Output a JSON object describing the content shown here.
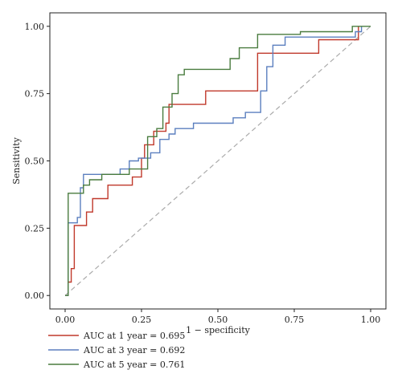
{
  "chart_data": {
    "type": "line",
    "title": "",
    "xlabel": "1 − specificity",
    "ylabel": "Sensitivity",
    "xlim": [
      -0.05,
      1.05
    ],
    "ylim": [
      -0.05,
      1.05
    ],
    "x_ticks": [
      "0.00",
      "0.25",
      "0.50",
      "0.75",
      "1.00"
    ],
    "y_ticks": [
      "0.00",
      "0.25",
      "0.50",
      "0.75",
      "1.00"
    ],
    "grid": false,
    "legend_position": "bottom-left, below plot",
    "reference_line": {
      "style": "dashed",
      "color": "#aaaaaa",
      "from": [
        0,
        0
      ],
      "to": [
        1,
        1
      ]
    },
    "series": [
      {
        "name": "AUC at 1 year = 0.695",
        "color": "#c0392b",
        "points": [
          [
            0.0,
            0.0
          ],
          [
            0.01,
            0.0
          ],
          [
            0.01,
            0.05
          ],
          [
            0.02,
            0.05
          ],
          [
            0.02,
            0.1
          ],
          [
            0.03,
            0.1
          ],
          [
            0.03,
            0.26
          ],
          [
            0.07,
            0.26
          ],
          [
            0.07,
            0.31
          ],
          [
            0.09,
            0.31
          ],
          [
            0.09,
            0.36
          ],
          [
            0.14,
            0.36
          ],
          [
            0.14,
            0.41
          ],
          [
            0.22,
            0.41
          ],
          [
            0.22,
            0.44
          ],
          [
            0.25,
            0.44
          ],
          [
            0.25,
            0.51
          ],
          [
            0.26,
            0.51
          ],
          [
            0.26,
            0.56
          ],
          [
            0.29,
            0.56
          ],
          [
            0.29,
            0.61
          ],
          [
            0.33,
            0.61
          ],
          [
            0.33,
            0.64
          ],
          [
            0.34,
            0.64
          ],
          [
            0.34,
            0.71
          ],
          [
            0.46,
            0.71
          ],
          [
            0.46,
            0.76
          ],
          [
            0.63,
            0.76
          ],
          [
            0.63,
            0.9
          ],
          [
            0.83,
            0.9
          ],
          [
            0.83,
            0.95
          ],
          [
            0.96,
            0.95
          ],
          [
            0.96,
            1.0
          ]
        ]
      },
      {
        "name": "AUC at 3 year = 0.692",
        "color": "#5b7fbf",
        "points": [
          [
            0.0,
            0.0
          ],
          [
            0.01,
            0.0
          ],
          [
            0.01,
            0.27
          ],
          [
            0.04,
            0.27
          ],
          [
            0.04,
            0.29
          ],
          [
            0.05,
            0.29
          ],
          [
            0.05,
            0.4
          ],
          [
            0.06,
            0.4
          ],
          [
            0.06,
            0.45
          ],
          [
            0.18,
            0.45
          ],
          [
            0.18,
            0.47
          ],
          [
            0.21,
            0.47
          ],
          [
            0.21,
            0.5
          ],
          [
            0.24,
            0.5
          ],
          [
            0.24,
            0.51
          ],
          [
            0.28,
            0.51
          ],
          [
            0.28,
            0.53
          ],
          [
            0.31,
            0.53
          ],
          [
            0.31,
            0.58
          ],
          [
            0.34,
            0.58
          ],
          [
            0.34,
            0.6
          ],
          [
            0.36,
            0.6
          ],
          [
            0.36,
            0.62
          ],
          [
            0.42,
            0.62
          ],
          [
            0.42,
            0.64
          ],
          [
            0.55,
            0.64
          ],
          [
            0.55,
            0.66
          ],
          [
            0.59,
            0.66
          ],
          [
            0.59,
            0.68
          ],
          [
            0.64,
            0.68
          ],
          [
            0.64,
            0.76
          ],
          [
            0.66,
            0.76
          ],
          [
            0.66,
            0.85
          ],
          [
            0.68,
            0.85
          ],
          [
            0.68,
            0.93
          ],
          [
            0.72,
            0.93
          ],
          [
            0.72,
            0.96
          ],
          [
            0.95,
            0.96
          ],
          [
            0.95,
            0.98
          ],
          [
            0.97,
            0.98
          ],
          [
            0.97,
            1.0
          ]
        ]
      },
      {
        "name": "AUC at 5 year = 0.761",
        "color": "#4a7c3f",
        "points": [
          [
            0.0,
            0.0
          ],
          [
            0.01,
            0.0
          ],
          [
            0.01,
            0.38
          ],
          [
            0.06,
            0.38
          ],
          [
            0.06,
            0.41
          ],
          [
            0.08,
            0.41
          ],
          [
            0.08,
            0.43
          ],
          [
            0.12,
            0.43
          ],
          [
            0.12,
            0.45
          ],
          [
            0.21,
            0.45
          ],
          [
            0.21,
            0.47
          ],
          [
            0.27,
            0.47
          ],
          [
            0.27,
            0.59
          ],
          [
            0.3,
            0.59
          ],
          [
            0.3,
            0.62
          ],
          [
            0.32,
            0.62
          ],
          [
            0.32,
            0.7
          ],
          [
            0.35,
            0.7
          ],
          [
            0.35,
            0.75
          ],
          [
            0.37,
            0.75
          ],
          [
            0.37,
            0.82
          ],
          [
            0.39,
            0.82
          ],
          [
            0.39,
            0.84
          ],
          [
            0.54,
            0.84
          ],
          [
            0.54,
            0.88
          ],
          [
            0.57,
            0.88
          ],
          [
            0.57,
            0.92
          ],
          [
            0.63,
            0.92
          ],
          [
            0.63,
            0.97
          ],
          [
            0.77,
            0.97
          ],
          [
            0.77,
            0.98
          ],
          [
            0.94,
            0.98
          ],
          [
            0.94,
            1.0
          ],
          [
            1.0,
            1.0
          ]
        ]
      }
    ]
  }
}
